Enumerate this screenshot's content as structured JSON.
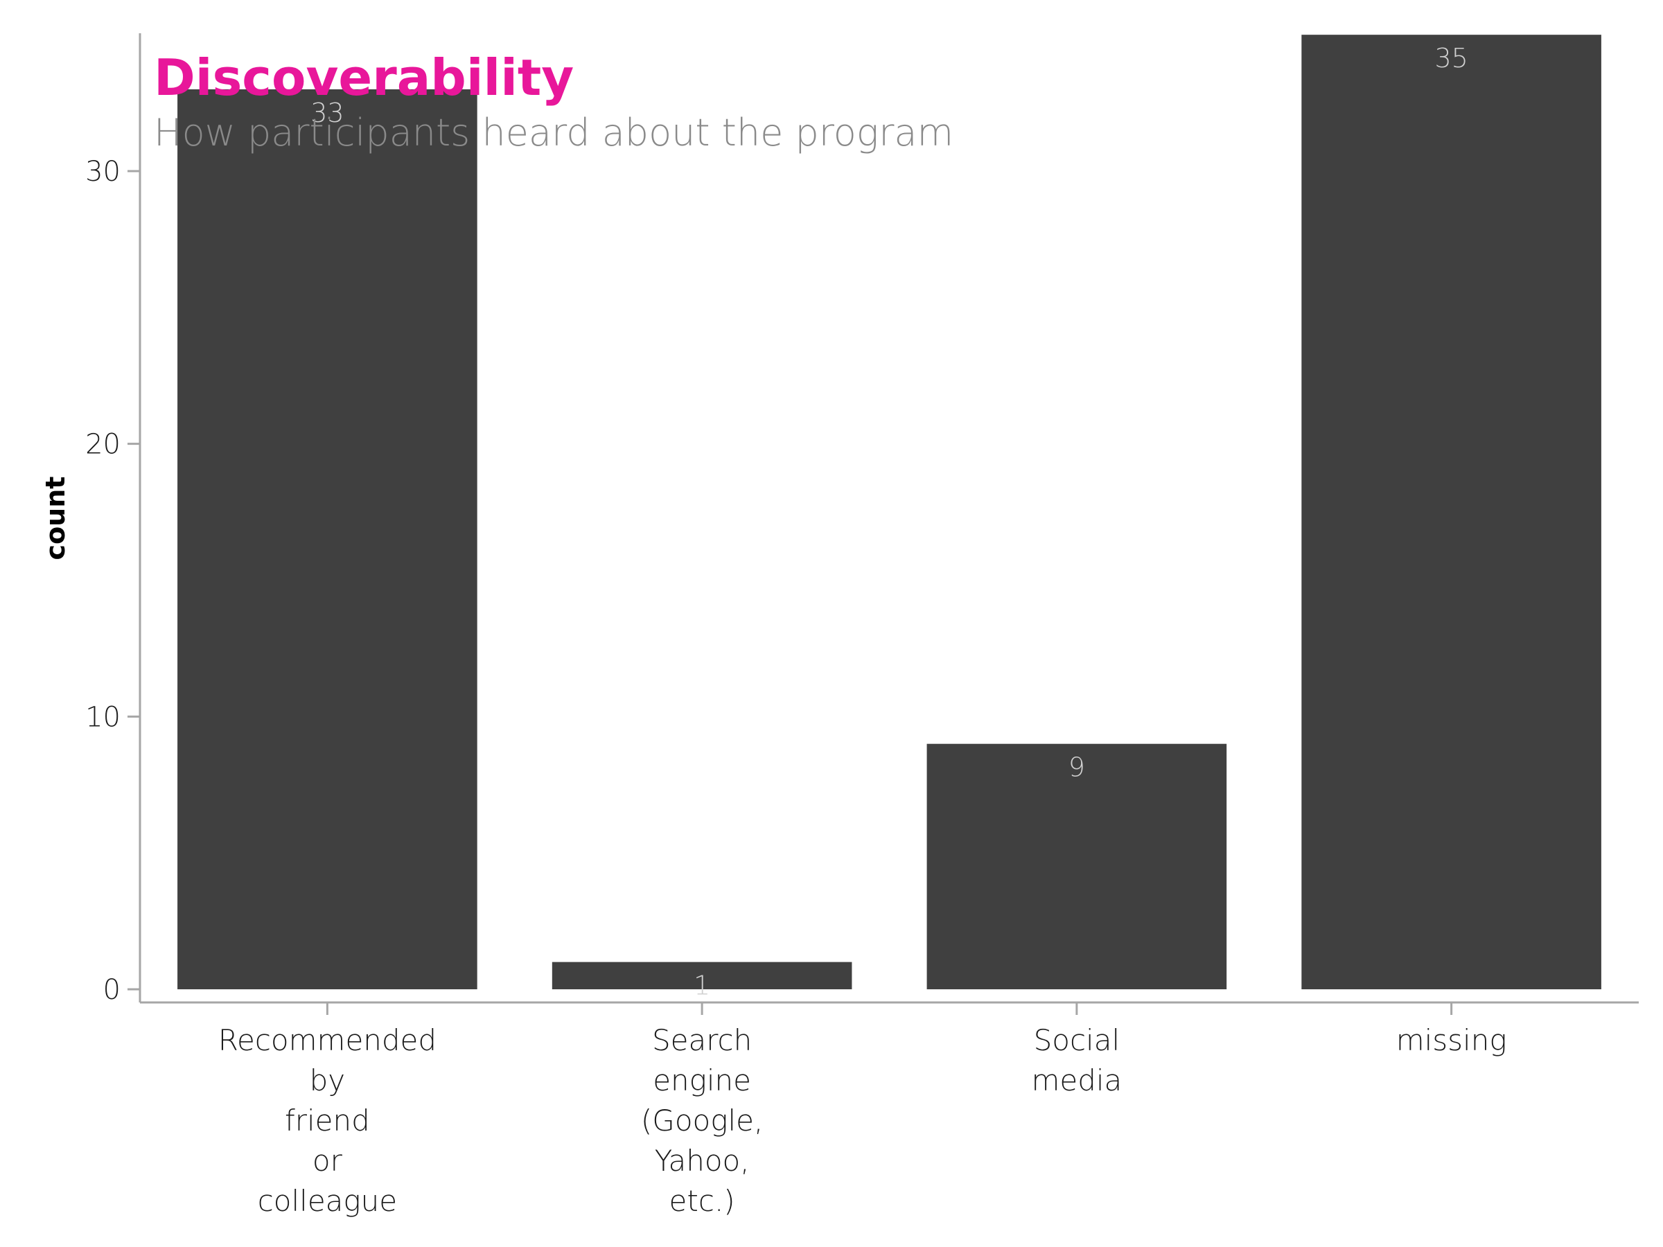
{
  "chart_data": {
    "type": "bar",
    "title": "Discoverability",
    "subtitle": "How participants heard about the program",
    "xlabel": "",
    "ylabel": "count",
    "categories": [
      [
        "Recommended",
        "by",
        "friend",
        "or",
        "colleague"
      ],
      [
        "Search",
        "engine",
        "(Google,",
        "Yahoo,",
        "etc.)"
      ],
      [
        "Social",
        "media"
      ],
      [
        "missing"
      ]
    ],
    "values": [
      33,
      1,
      9,
      35
    ],
    "data_labels": [
      "33",
      "1",
      "9",
      "35"
    ],
    "yticks": [
      0,
      10,
      20,
      30
    ],
    "ylim": [
      -0.5,
      35
    ],
    "grid": false,
    "colors": {
      "bar": "#404040",
      "title": "#e8179a",
      "subtitle": "#8a8a8a",
      "axis": "#a6a6a6",
      "data_label": "#d0d0d0"
    }
  }
}
